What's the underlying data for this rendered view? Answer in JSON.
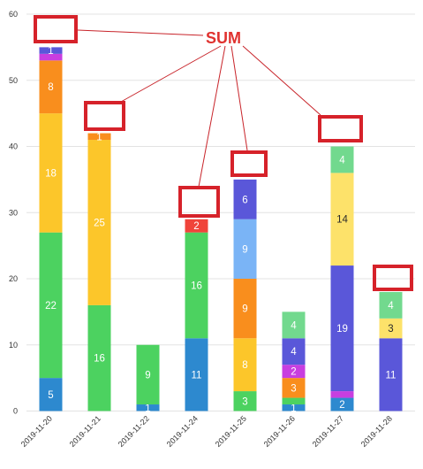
{
  "chart_data": {
    "type": "bar",
    "stacked": true,
    "categories": [
      "2019-11-20",
      "2019-11-21",
      "2019-11-22",
      "2019-11-24",
      "2019-11-25",
      "2019-11-26",
      "2019-11-27",
      "2019-11-28"
    ],
    "ylim": [
      0,
      60
    ],
    "yticks": [
      "0",
      "10",
      "20",
      "30",
      "40",
      "50",
      "60"
    ],
    "grid": true,
    "legend": "none",
    "stacks": [
      [
        {
          "value": 5,
          "color": "#2d89cf",
          "label": "5"
        },
        {
          "value": 22,
          "color": "#4cd260",
          "label": "22"
        },
        {
          "value": 18,
          "color": "#fcc62a",
          "label": "18"
        },
        {
          "value": 8,
          "color": "#f98e1d",
          "label": "8"
        },
        {
          "value": 1,
          "color": "#c83ee0",
          "label": ""
        },
        {
          "value": 1,
          "color": "#5a57d9",
          "label": "1"
        }
      ],
      [
        {
          "value": 16,
          "color": "#4cd260",
          "label": "16"
        },
        {
          "value": 25,
          "color": "#fcc62a",
          "label": "25"
        },
        {
          "value": 1,
          "color": "#f98e1d",
          "label": "1"
        }
      ],
      [
        {
          "value": 1,
          "color": "#2d89cf",
          "label": "1"
        },
        {
          "value": 9,
          "color": "#4cd260",
          "label": "9"
        }
      ],
      [
        {
          "value": 11,
          "color": "#2d89cf",
          "label": "11"
        },
        {
          "value": 16,
          "color": "#4cd260",
          "label": "16"
        },
        {
          "value": 2,
          "color": "#f0443a",
          "label": "2"
        }
      ],
      [
        {
          "value": 3,
          "color": "#4cd260",
          "label": "3"
        },
        {
          "value": 8,
          "color": "#fcc62a",
          "label": "8"
        },
        {
          "value": 9,
          "color": "#f98e1d",
          "label": "9"
        },
        {
          "value": 9,
          "color": "#7ab4f6",
          "label": "9"
        },
        {
          "value": 6,
          "color": "#5a57d9",
          "label": "6"
        }
      ],
      [
        {
          "value": 1,
          "color": "#2d89cf",
          "label": "1"
        },
        {
          "value": 1,
          "color": "#4cd260",
          "label": ""
        },
        {
          "value": 3,
          "color": "#f98e1d",
          "label": "3"
        },
        {
          "value": 2,
          "color": "#c83ee0",
          "label": "2"
        },
        {
          "value": 4,
          "color": "#5a57d9",
          "label": "4"
        },
        {
          "value": 4,
          "color": "#72d98e",
          "label": "4"
        }
      ],
      [
        {
          "value": 2,
          "color": "#2d89cf",
          "label": "2"
        },
        {
          "value": 1,
          "color": "#c83ee0",
          "label": ""
        },
        {
          "value": 19,
          "color": "#5a57d9",
          "label": "19"
        },
        {
          "value": 14,
          "color": "#fde26a",
          "label": "14",
          "dark": true
        },
        {
          "value": 4,
          "color": "#72d98e",
          "label": "4"
        }
      ],
      [
        {
          "value": 11,
          "color": "#5a57d9",
          "label": "11"
        },
        {
          "value": 3,
          "color": "#fde26a",
          "label": "3",
          "dark": true
        },
        {
          "value": 4,
          "color": "#72d98e",
          "label": "4"
        }
      ]
    ],
    "annotation": "SUM"
  }
}
